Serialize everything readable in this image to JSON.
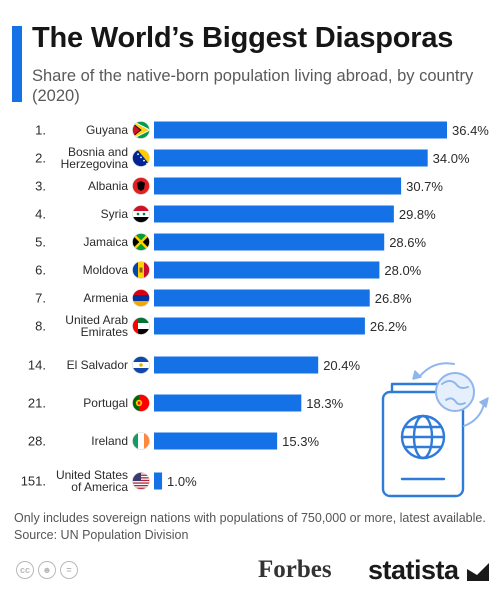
{
  "title": "The World’s Biggest Diasporas",
  "subtitle": "Share of the native-born population living abroad, by country (2020)",
  "colors": {
    "bar": "#1572e6",
    "accent": "#1572e6",
    "illustration": "#2f7bd9"
  },
  "footnote": "Only includes sovereign nations with populations of 750,000 or more, latest available.",
  "source": "Source: UN Population Division",
  "brand": {
    "forbes": "Forbes",
    "statista": "statista"
  },
  "license_icons": [
    "cc-icon",
    "attribution-icon",
    "no-derivatives-icon"
  ],
  "chart_data": {
    "type": "bar",
    "orientation": "horizontal",
    "unit": "%",
    "xlim": [
      0,
      37
    ],
    "grid": false,
    "legend": "none",
    "rows": [
      {
        "rank": "1.",
        "country": [
          "Guyana"
        ],
        "value": 36.4,
        "label": "36.4%",
        "flag": "guyana"
      },
      {
        "rank": "2.",
        "country": [
          "Bosnia and",
          "Herzegovina"
        ],
        "value": 34.0,
        "label": "34.0%",
        "flag": "bosnia"
      },
      {
        "rank": "3.",
        "country": [
          "Albania"
        ],
        "value": 30.7,
        "label": "30.7%",
        "flag": "albania"
      },
      {
        "rank": "4.",
        "country": [
          "Syria"
        ],
        "value": 29.8,
        "label": "29.8%",
        "flag": "syria"
      },
      {
        "rank": "5.",
        "country": [
          "Jamaica"
        ],
        "value": 28.6,
        "label": "28.6%",
        "flag": "jamaica"
      },
      {
        "rank": "6.",
        "country": [
          "Moldova"
        ],
        "value": 28.0,
        "label": "28.0%",
        "flag": "moldova"
      },
      {
        "rank": "7.",
        "country": [
          "Armenia"
        ],
        "value": 26.8,
        "label": "26.8%",
        "flag": "armenia"
      },
      {
        "rank": "8.",
        "country": [
          "United Arab",
          "Emirates"
        ],
        "value": 26.2,
        "label": "26.2%",
        "flag": "uae"
      },
      {
        "rank": "14.",
        "country": [
          "El Salvador"
        ],
        "value": 20.4,
        "label": "20.4%",
        "flag": "elsalvador"
      },
      {
        "rank": "21.",
        "country": [
          "Portugal"
        ],
        "value": 18.3,
        "label": "18.3%",
        "flag": "portugal"
      },
      {
        "rank": "28.",
        "country": [
          "Ireland"
        ],
        "value": 15.3,
        "label": "15.3%",
        "flag": "ireland"
      },
      {
        "rank": "151.",
        "country": [
          "United States",
          "of America"
        ],
        "value": 1.0,
        "label": "1.0%",
        "flag": "usa"
      }
    ]
  }
}
